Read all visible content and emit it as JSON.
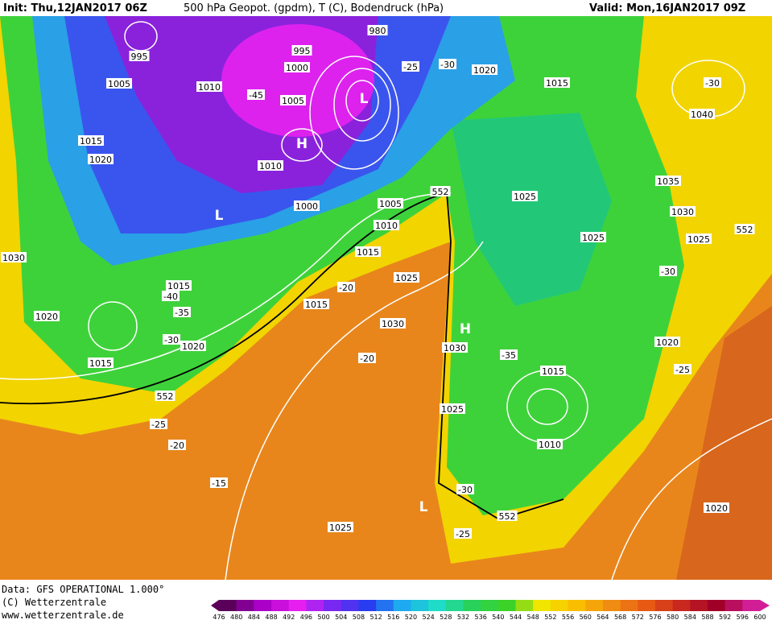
{
  "header": {
    "init": "Init: Thu,12JAN2017 06Z",
    "title": "500 hPa Geopot. (gpdm), T (C), Bodendruck (hPa)",
    "valid": "Valid: Mon,16JAN2017 09Z"
  },
  "footer": {
    "data": "Data: GFS OPERATIONAL 1.000°",
    "copyright": "(C) Wetterzentrale",
    "url": "www.wetterzentrale.de"
  },
  "map": {
    "labels": [
      "995",
      "1005",
      "1010",
      "1015",
      "1020",
      "1030",
      "1020",
      "1015",
      "1020",
      "1015",
      "552",
      "-25",
      "-20",
      "-15",
      "1025",
      "-40",
      "-35",
      "-30",
      "-45",
      "1010",
      "1000",
      "1005",
      "995",
      "980",
      "-30",
      "-25",
      "1020",
      "1015",
      "-30",
      "1040",
      "1035",
      "1030",
      "1025",
      "552",
      "-30",
      "1020",
      "-25",
      "1025",
      "1025",
      "552",
      "1005",
      "1010",
      "1015",
      "1015",
      "-20",
      "1025",
      "1030",
      "1030",
      "-20",
      "-35",
      "1015",
      "1010",
      "1025",
      "-30",
      "-25",
      "552",
      "1020",
      "1000"
    ],
    "centers": [
      "H",
      "L",
      "L",
      "H",
      "L"
    ]
  },
  "colorbar": {
    "labels": [
      476,
      480,
      484,
      488,
      492,
      496,
      500,
      504,
      508,
      512,
      516,
      520,
      524,
      528,
      532,
      536,
      540,
      544,
      548,
      552,
      556,
      560,
      564,
      568,
      572,
      576,
      580,
      584,
      588,
      592,
      596,
      600
    ]
  }
}
